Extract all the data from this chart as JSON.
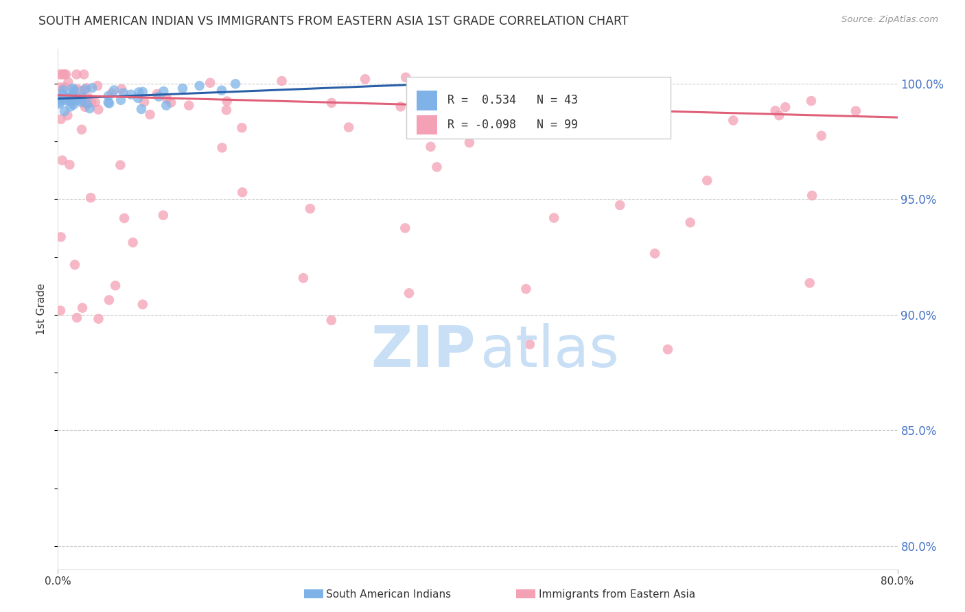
{
  "title": "SOUTH AMERICAN INDIAN VS IMMIGRANTS FROM EASTERN ASIA 1ST GRADE CORRELATION CHART",
  "source": "Source: ZipAtlas.com",
  "ylabel_left": "1st Grade",
  "y_ticks_right": [
    80.0,
    85.0,
    90.0,
    95.0,
    100.0
  ],
  "x_range": [
    0.0,
    80.0
  ],
  "y_range": [
    79.0,
    101.5
  ],
  "legend_blue_label": "South American Indians",
  "legend_pink_label": "Immigrants from Eastern Asia",
  "R_blue": 0.534,
  "N_blue": 43,
  "R_pink": -0.098,
  "N_pink": 99,
  "blue_color": "#7fb3e8",
  "pink_color": "#f4a0b5",
  "blue_line_color": "#2a5fa8",
  "pink_line_color": "#e0607a",
  "watermark_zip_color": "#c8dff5",
  "watermark_atlas_color": "#c8dff5",
  "grid_color": "#cccccc",
  "tick_label_color": "#4472c4",
  "title_color": "#333333",
  "source_color": "#999999",
  "ylabel_color": "#333333"
}
